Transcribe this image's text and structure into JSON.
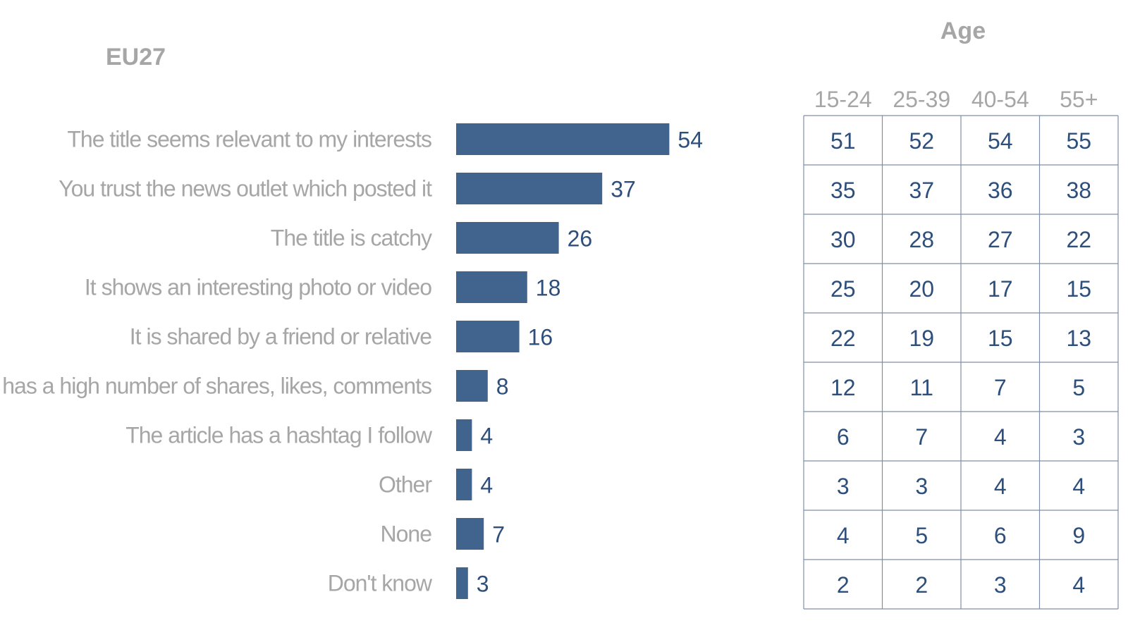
{
  "region_label": "EU27",
  "colors": {
    "bar": "#41648f",
    "value_text": "#2e4f7c",
    "label_text": "#a6a6a6",
    "grid": "#7f8fa6"
  },
  "chart_data": [
    {
      "type": "bar",
      "orientation": "horizontal",
      "title": "EU27",
      "categories": [
        "The title seems relevant to my interests",
        "You trust the news outlet which posted it",
        "The title is catchy",
        "It shows an interesting photo or video",
        "It is shared by a friend or relative",
        "It has a high number of shares, likes, comments",
        "The article has a hashtag I follow",
        "Other",
        "None",
        "Don't know"
      ],
      "values": [
        54,
        37,
        26,
        18,
        16,
        8,
        4,
        4,
        7,
        3
      ],
      "data_labels": [
        "54",
        "37",
        "26",
        "18",
        "16",
        "8",
        "4",
        "4",
        "7",
        "3"
      ],
      "xlim": [
        0,
        54
      ],
      "grid": false,
      "legend": "none"
    },
    {
      "type": "table",
      "title": "Age",
      "columns": [
        "15-24",
        "25-39",
        "40-54",
        "55+"
      ],
      "rows": [
        [
          "51",
          "52",
          "54",
          "55"
        ],
        [
          "35",
          "37",
          "36",
          "38"
        ],
        [
          "30",
          "28",
          "27",
          "22"
        ],
        [
          "25",
          "20",
          "17",
          "15"
        ],
        [
          "22",
          "19",
          "15",
          "13"
        ],
        [
          "12",
          "11",
          "7",
          "5"
        ],
        [
          "6",
          "7",
          "4",
          "3"
        ],
        [
          "3",
          "3",
          "4",
          "4"
        ],
        [
          "4",
          "5",
          "6",
          "9"
        ],
        [
          "2",
          "2",
          "3",
          "4"
        ]
      ]
    }
  ]
}
